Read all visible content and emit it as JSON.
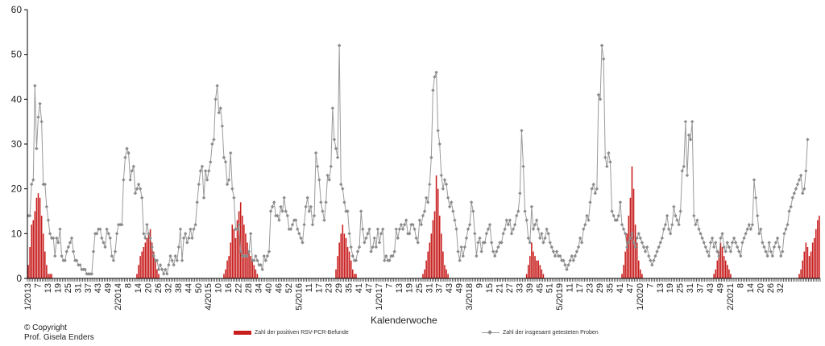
{
  "chart_data": {
    "type": "bar+line",
    "xlabel": "Kalenderwoche",
    "ylabel": "",
    "ylim": [
      0,
      60
    ],
    "yticks": [
      0,
      10,
      20,
      30,
      40,
      50,
      60
    ],
    "grid": false,
    "legend_position": "bottom",
    "colors": {
      "bars": "#c81e1e",
      "line": "#9a9a9a",
      "marker": "#8a8a8a"
    },
    "x_tick_labels": [
      "1/2013",
      "7",
      "13",
      "19",
      "25",
      "31",
      "37",
      "43",
      "49",
      "2/2014",
      "8",
      "14",
      "20",
      "26",
      "32",
      "38",
      "44",
      "50",
      "4/2015",
      "10",
      "16",
      "22",
      "28",
      "34",
      "40",
      "46",
      "52",
      "5/2016",
      "11",
      "17",
      "23",
      "29",
      "35",
      "41",
      "47",
      "1/2017",
      "7",
      "13",
      "19",
      "25",
      "31",
      "37",
      "43",
      "49",
      "3/2018",
      "9",
      "15",
      "21",
      "27",
      "33",
      "39",
      "45",
      "51",
      "5/2019",
      "11",
      "17",
      "23",
      "29",
      "35",
      "41",
      "47",
      "1/2020",
      "7",
      "13",
      "19",
      "25",
      "31",
      "37",
      "43",
      "49",
      "2/2021",
      "8",
      "14",
      "20",
      "26",
      "32"
    ],
    "series": [
      {
        "name": "Zahl der positiven RSV-PCR-Befunde",
        "type": "bar",
        "values": [
          3,
          7,
          12,
          13,
          15,
          18,
          19,
          18,
          14,
          10,
          6,
          3,
          1,
          1,
          1,
          0,
          0,
          0,
          0,
          0,
          0,
          0,
          0,
          0,
          0,
          0,
          0,
          0,
          0,
          0,
          0,
          0,
          0,
          0,
          0,
          0,
          0,
          0,
          0,
          0,
          0,
          0,
          0,
          0,
          0,
          0,
          0,
          0,
          0,
          0,
          0,
          0,
          0,
          0,
          0,
          0,
          0,
          0,
          0,
          0,
          0,
          0,
          0,
          0,
          0,
          1,
          3,
          5,
          6,
          7,
          8,
          9,
          10,
          11,
          8,
          6,
          4,
          2,
          1,
          0,
          0,
          0,
          0,
          0,
          0,
          0,
          0,
          0,
          0,
          0,
          0,
          0,
          0,
          0,
          0,
          0,
          0,
          0,
          0,
          0,
          0,
          0,
          0,
          0,
          0,
          0,
          0,
          0,
          0,
          0,
          0,
          0,
          0,
          0,
          0,
          0,
          0,
          1,
          2,
          4,
          5,
          8,
          12,
          11,
          9,
          13,
          15,
          17,
          14,
          12,
          10,
          8,
          6,
          5,
          4,
          3,
          2,
          1,
          0,
          0,
          0,
          0,
          0,
          0,
          0,
          0,
          0,
          0,
          0,
          0,
          0,
          0,
          0,
          0,
          0,
          0,
          0,
          0,
          0,
          0,
          0,
          0,
          0,
          0,
          0,
          0,
          0,
          0,
          0,
          0,
          0,
          0,
          0,
          0,
          0,
          0,
          0,
          0,
          0,
          0,
          0,
          0,
          0,
          0,
          2,
          5,
          8,
          10,
          12,
          10,
          9,
          7,
          6,
          4,
          2,
          1,
          1,
          0,
          0,
          0,
          0,
          0,
          0,
          0,
          0,
          0,
          0,
          0,
          0,
          0,
          0,
          0,
          0,
          0,
          0,
          0,
          0,
          0,
          0,
          0,
          0,
          0,
          0,
          0,
          0,
          0,
          0,
          0,
          0,
          0,
          0,
          0,
          0,
          0,
          0,
          0,
          1,
          2,
          4,
          6,
          8,
          10,
          13,
          15,
          23,
          20,
          14,
          10,
          6,
          3,
          2,
          1,
          0,
          0,
          0,
          0,
          0,
          0,
          0,
          0,
          0,
          0,
          0,
          0,
          0,
          0,
          0,
          0,
          0,
          0,
          0,
          0,
          0,
          0,
          0,
          0,
          0,
          0,
          0,
          0,
          0,
          0,
          0,
          0,
          0,
          0,
          0,
          0,
          0,
          0,
          0,
          0,
          0,
          0,
          0,
          0,
          0,
          0,
          1,
          3,
          5,
          8,
          6,
          5,
          4,
          4,
          3,
          2,
          1,
          0,
          0,
          0,
          0,
          0,
          0,
          0,
          0,
          0,
          0,
          0,
          0,
          0,
          0,
          0,
          0,
          0,
          0,
          0,
          0,
          0,
          0,
          0,
          0,
          0,
          0,
          0,
          0,
          0,
          0,
          0,
          0,
          0,
          0,
          0,
          0,
          0,
          0,
          0,
          0,
          0,
          0,
          0,
          0,
          0,
          0,
          1,
          3,
          6,
          10,
          14,
          18,
          25,
          20,
          12,
          8,
          4,
          2,
          1,
          0,
          0,
          0,
          0,
          0,
          0,
          0,
          0,
          0,
          0,
          0,
          0,
          0,
          0,
          0,
          0,
          0,
          0,
          0,
          0,
          0,
          0,
          0,
          0,
          0,
          0,
          0,
          0,
          0,
          0,
          0,
          0,
          0,
          0,
          0,
          0,
          0,
          0,
          0,
          0,
          0,
          0,
          1,
          2,
          4,
          6,
          8,
          7,
          5,
          4,
          3,
          2,
          1,
          0,
          0,
          0,
          0,
          0,
          0,
          0,
          0,
          0,
          0,
          0,
          0,
          0,
          0,
          0,
          0,
          0,
          0,
          0,
          0,
          0,
          0,
          0,
          0,
          0,
          0,
          0,
          0,
          0,
          0,
          0,
          0,
          0,
          0,
          0,
          0,
          0,
          0,
          0,
          0,
          1,
          2,
          4,
          6,
          8,
          7,
          5,
          6,
          8,
          9,
          11,
          13,
          14
        ]
      },
      {
        "name": "Zahl der insgesamt getesteten Proben",
        "type": "line",
        "values": [
          14,
          14,
          21,
          22,
          43,
          29,
          36,
          39,
          35,
          21,
          21,
          16,
          13,
          10,
          9,
          9,
          5,
          9,
          8,
          11,
          5,
          4,
          4,
          6,
          7,
          8,
          9,
          6,
          4,
          4,
          3,
          3,
          2,
          2,
          2,
          1,
          1,
          1,
          1,
          6,
          10,
          10,
          11,
          11,
          9,
          8,
          7,
          11,
          10,
          9,
          5,
          4,
          6,
          10,
          12,
          12,
          12,
          22,
          27,
          29,
          28,
          22,
          24,
          25,
          19,
          20,
          21,
          20,
          18,
          10,
          9,
          12,
          10,
          9,
          7,
          5,
          4,
          4,
          2,
          3,
          2,
          1,
          2,
          1,
          3,
          5,
          4,
          3,
          5,
          4,
          7,
          11,
          4,
          9,
          10,
          8,
          9,
          11,
          9,
          11,
          12,
          17,
          21,
          24,
          25,
          18,
          24,
          22,
          24,
          26,
          30,
          31,
          40,
          43,
          37,
          38,
          34,
          27,
          26,
          21,
          22,
          28,
          20,
          18,
          11,
          11,
          12,
          6,
          5,
          5,
          5,
          5,
          6,
          10,
          4,
          4,
          5,
          4,
          3,
          3,
          2,
          5,
          4,
          5,
          6,
          15,
          16,
          17,
          14,
          14,
          13,
          16,
          15,
          18,
          15,
          14,
          11,
          11,
          12,
          13,
          13,
          11,
          10,
          9,
          8,
          12,
          16,
          18,
          15,
          16,
          12,
          14,
          28,
          25,
          22,
          17,
          15,
          13,
          17,
          23,
          22,
          25,
          38,
          31,
          29,
          27,
          52,
          21,
          20,
          17,
          15,
          15,
          10,
          7,
          5,
          4,
          4,
          6,
          7,
          15,
          11,
          8,
          9,
          10,
          11,
          6,
          7,
          9,
          7,
          11,
          8,
          10,
          11,
          4,
          5,
          4,
          4,
          5,
          5,
          6,
          11,
          9,
          11,
          12,
          11,
          12,
          13,
          10,
          10,
          12,
          12,
          11,
          9,
          8,
          13,
          12,
          14,
          15,
          18,
          17,
          21,
          27,
          42,
          45,
          46,
          33,
          30,
          23,
          20,
          22,
          21,
          18,
          16,
          17,
          15,
          13,
          11,
          6,
          4,
          7,
          5,
          7,
          9,
          11,
          12,
          17,
          15,
          10,
          5,
          8,
          9,
          6,
          8,
          8,
          10,
          11,
          12,
          8,
          6,
          5,
          6,
          7,
          8,
          8,
          10,
          11,
          13,
          12,
          13,
          10,
          11,
          12,
          14,
          15,
          19,
          33,
          25,
          15,
          13,
          9,
          8,
          16,
          11,
          12,
          13,
          11,
          9,
          10,
          8,
          9,
          11,
          10,
          8,
          7,
          6,
          5,
          6,
          5,
          5,
          4,
          4,
          3,
          2,
          3,
          4,
          5,
          4,
          5,
          6,
          7,
          9,
          8,
          11,
          12,
          14,
          13,
          17,
          20,
          21,
          19,
          20,
          41,
          40,
          52,
          49,
          27,
          25,
          28,
          26,
          15,
          14,
          13,
          13,
          14,
          17,
          12,
          11,
          10,
          7,
          8,
          9,
          10,
          8,
          7,
          9,
          10,
          9,
          8,
          7,
          6,
          7,
          5,
          4,
          3,
          4,
          5,
          6,
          7,
          8,
          9,
          11,
          12,
          14,
          11,
          10,
          12,
          16,
          14,
          13,
          12,
          15,
          24,
          25,
          35,
          23,
          32,
          31,
          35,
          14,
          12,
          13,
          11,
          10,
          9,
          8,
          7,
          6,
          5,
          8,
          9,
          7,
          8,
          6,
          5,
          9,
          10,
          7,
          6,
          8,
          7,
          6,
          8,
          9,
          8,
          7,
          6,
          5,
          8,
          9,
          10,
          11,
          12,
          11,
          12,
          22,
          18,
          14,
          10,
          11,
          8,
          7,
          6,
          5,
          8,
          6,
          5,
          7,
          8,
          9,
          7,
          5,
          6,
          10,
          11,
          12,
          15,
          16,
          18,
          19,
          20,
          21,
          22,
          23,
          19,
          20,
          24,
          31
        ]
      }
    ]
  },
  "copyright": {
    "line1": "© Copyright",
    "line2": "Prof. Gisela Enders"
  }
}
